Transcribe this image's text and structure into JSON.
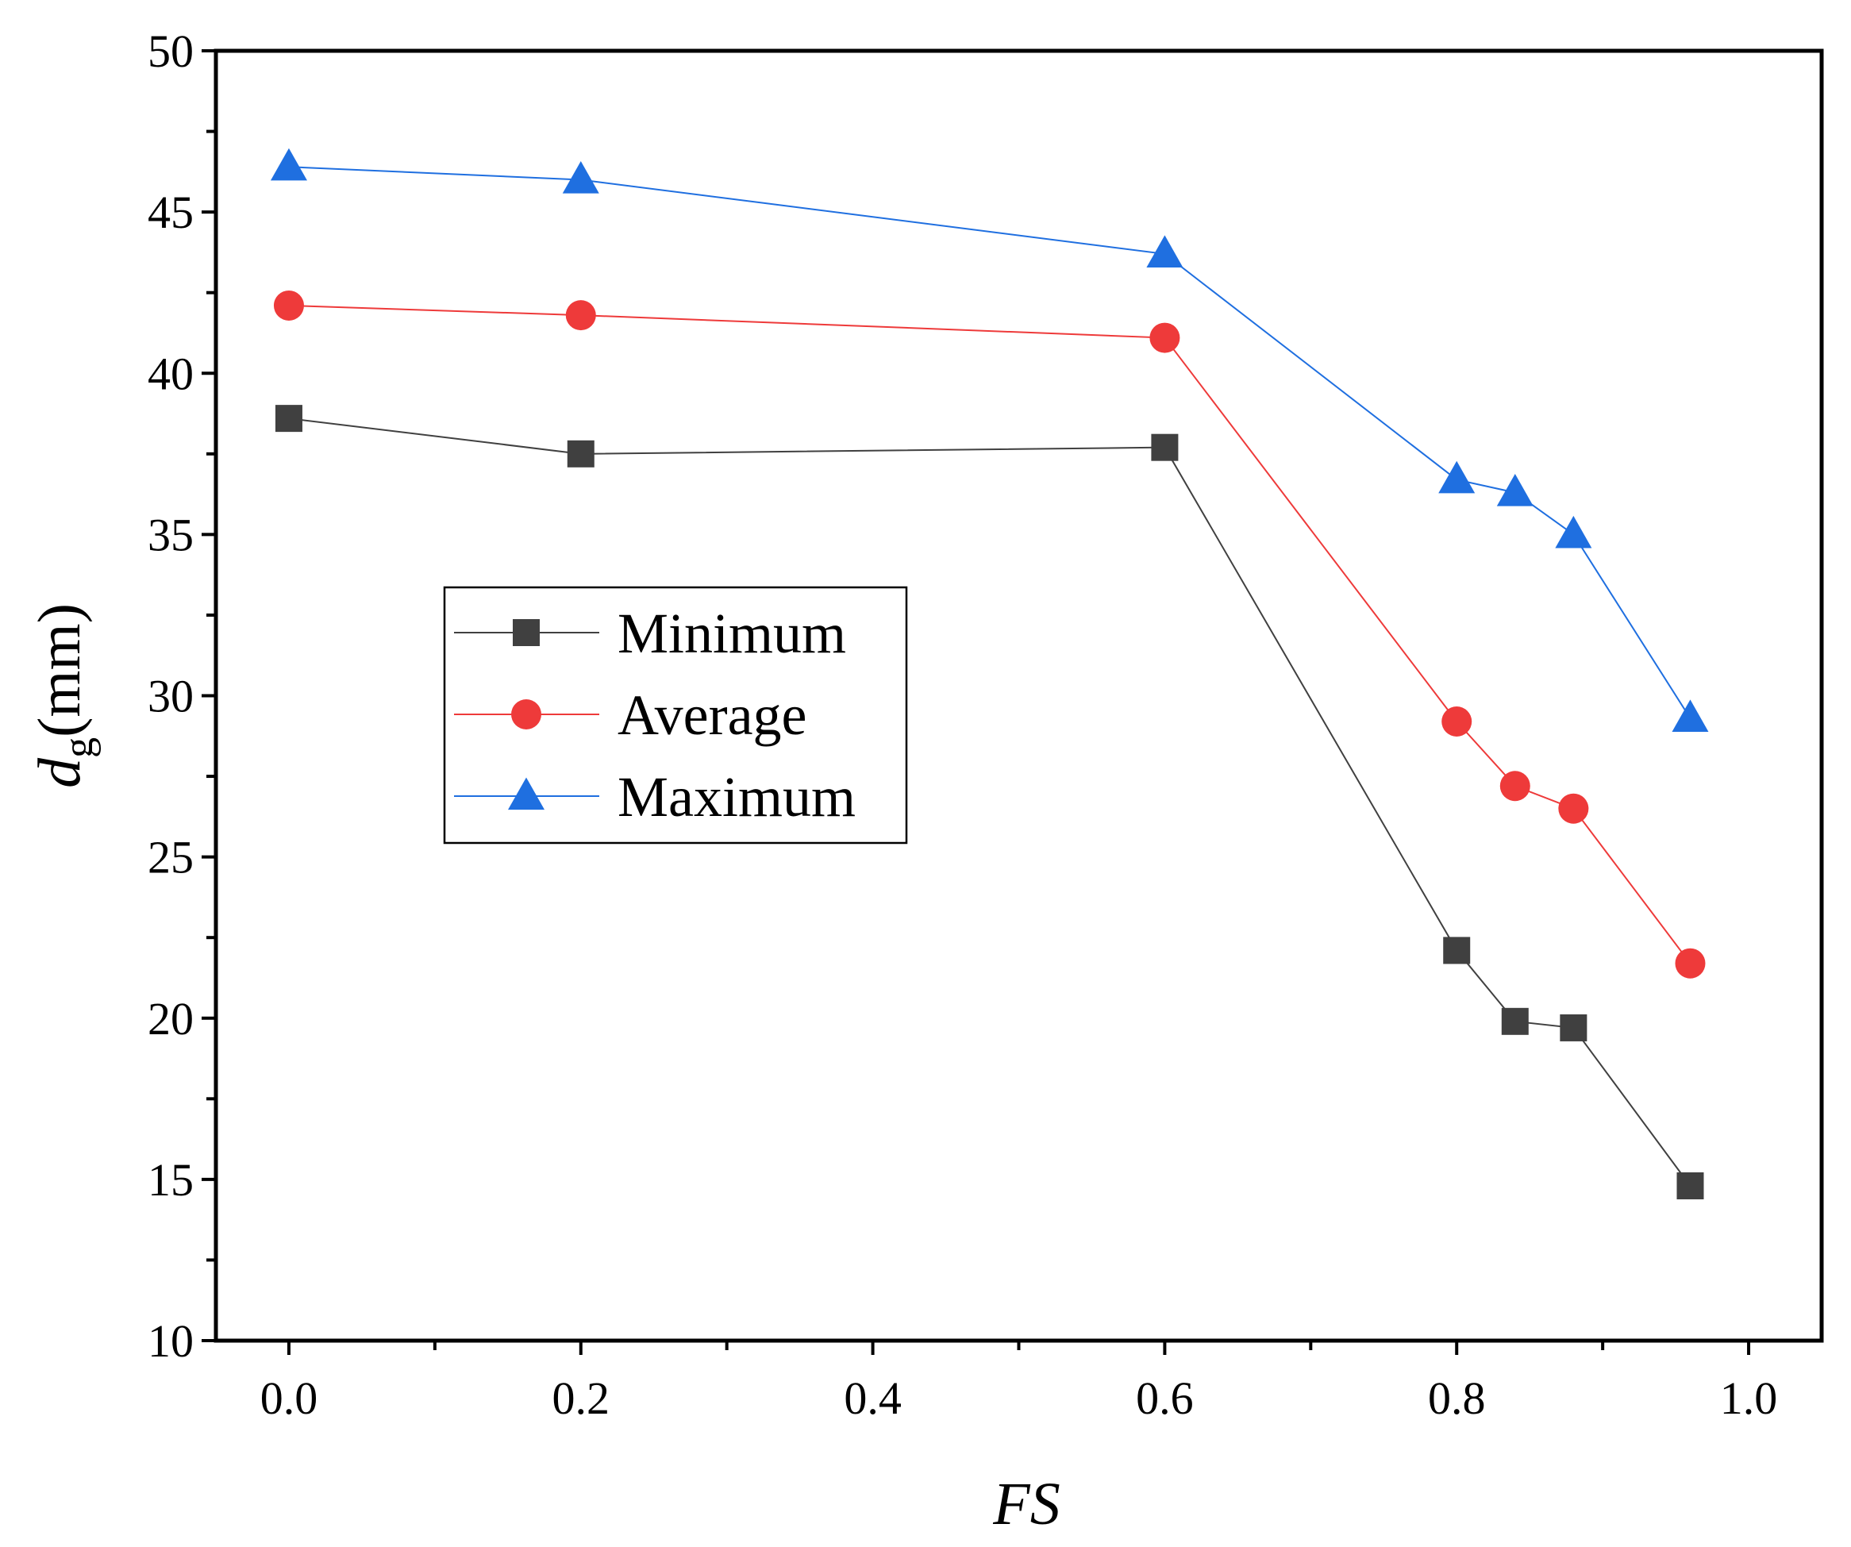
{
  "chart_data": {
    "type": "line",
    "title": "",
    "xlabel": "FS",
    "ylabel": {
      "main": "d",
      "subscript": "g",
      "suffix": "(mm)"
    },
    "xlim": [
      -0.05,
      1.05
    ],
    "ylim": [
      10,
      50
    ],
    "x_ticks": [
      0.0,
      0.2,
      0.4,
      0.6,
      0.8,
      1.0
    ],
    "x_tick_labels": [
      "0.0",
      "0.2",
      "0.4",
      "0.6",
      "0.8",
      "1.0"
    ],
    "y_ticks": [
      10,
      15,
      20,
      25,
      30,
      35,
      40,
      45,
      50
    ],
    "y_tick_labels": [
      "10",
      "15",
      "20",
      "25",
      "30",
      "35",
      "40",
      "45",
      "50"
    ],
    "x_minor_step": 0.1,
    "y_minor_step": 2.5,
    "grid": false,
    "legend_position": "center-left",
    "series": [
      {
        "name": "Minimum",
        "color": "#404040",
        "marker": "square",
        "x": [
          0.0,
          0.2,
          0.6,
          0.8,
          0.84,
          0.88,
          0.96
        ],
        "values": [
          38.6,
          37.5,
          37.7,
          22.1,
          19.9,
          19.7,
          14.8
        ]
      },
      {
        "name": "Average",
        "color": "#ee3a3a",
        "marker": "circle",
        "x": [
          0.0,
          0.2,
          0.6,
          0.8,
          0.84,
          0.88,
          0.96
        ],
        "values": [
          42.1,
          41.8,
          41.1,
          29.2,
          27.2,
          26.5,
          21.7
        ]
      },
      {
        "name": "Maximum",
        "color": "#1f6fe0",
        "marker": "triangle",
        "x": [
          0.0,
          0.2,
          0.6,
          0.8,
          0.84,
          0.88,
          0.96
        ],
        "values": [
          46.4,
          46.0,
          43.7,
          36.7,
          36.3,
          35.0,
          29.3
        ]
      }
    ]
  }
}
